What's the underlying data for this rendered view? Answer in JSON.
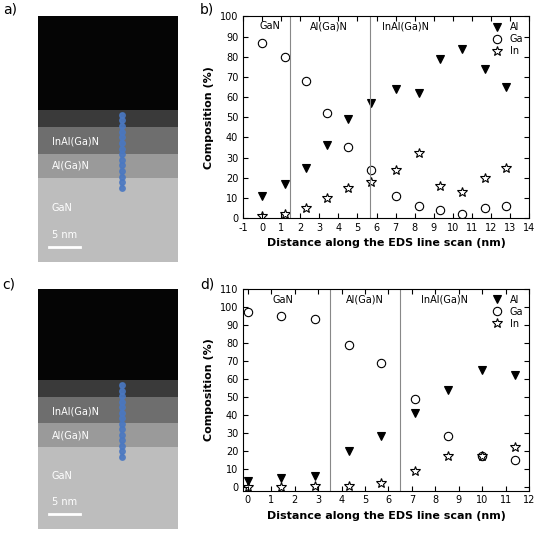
{
  "images": [
    {
      "panel": "a)",
      "layers": [
        "InAl(Ga)N",
        "Al(Ga)N",
        "GaN"
      ],
      "scale_bar": "5 nm"
    },
    {
      "panel": "c)",
      "layers": [
        "InAl(Ga)N",
        "Al(Ga)N",
        "GaN"
      ],
      "scale_bar": "5 nm"
    }
  ],
  "chart_data": [
    {
      "type": "scatter",
      "panel": "b)",
      "xlabel": "Distance along the EDS line scan (nm)",
      "ylabel": "Composition (%)",
      "xlim": [
        -1,
        14
      ],
      "xticks": [
        -1,
        0,
        1,
        2,
        3,
        4,
        5,
        6,
        7,
        8,
        9,
        10,
        11,
        12,
        13,
        14
      ],
      "ylim": [
        0,
        100
      ],
      "yticks": [
        0,
        10,
        20,
        30,
        40,
        50,
        60,
        70,
        80,
        90,
        100
      ],
      "legend": "upper right",
      "dividers": [
        1.45,
        5.65
      ],
      "annotations": [
        {
          "text": "GaN",
          "x": 0.4,
          "y": 95
        },
        {
          "text": "Al(Ga)N",
          "x": 3.5,
          "y": 95
        },
        {
          "text": "InAl(Ga)N",
          "x": 7.5,
          "y": 95
        }
      ],
      "x": [
        0,
        1.2,
        2.3,
        3.4,
        4.5,
        5.7,
        7.0,
        8.2,
        9.3,
        10.5,
        11.7,
        12.8
      ],
      "series": [
        {
          "name": "Al",
          "color": "#000000",
          "marker": "filled_triangle_down",
          "values": [
            11,
            17,
            25,
            36,
            49,
            57,
            64,
            62,
            79,
            84,
            74,
            65
          ]
        },
        {
          "name": "Ga",
          "color": "#000000",
          "marker": "open_circle",
          "values": [
            87,
            80,
            68,
            52,
            35,
            24,
            11,
            6,
            4,
            2,
            5,
            6
          ]
        },
        {
          "name": "In",
          "color": "#000000",
          "marker": "open_star",
          "values": [
            1,
            2,
            5,
            10,
            15,
            18,
            24,
            32,
            16,
            13,
            20,
            25
          ]
        }
      ]
    },
    {
      "type": "scatter",
      "panel": "d)",
      "xlabel": "Distance along the EDS line scan (nm)",
      "ylabel": "Composition (%)",
      "xlim": [
        -0.2,
        12
      ],
      "xticks": [
        0,
        1,
        2,
        3,
        4,
        5,
        6,
        7,
        8,
        9,
        10,
        11,
        12
      ],
      "ylim": [
        -2,
        110
      ],
      "yticks": [
        0,
        10,
        20,
        30,
        40,
        50,
        60,
        70,
        80,
        90,
        100,
        110
      ],
      "legend": "upper right",
      "dividers": [
        3.5,
        6.5
      ],
      "annotations": [
        {
          "text": "GaN",
          "x": 1.5,
          "y": 104
        },
        {
          "text": "Al(Ga)N",
          "x": 5.0,
          "y": 104
        },
        {
          "text": "InAl(Ga)N",
          "x": 8.4,
          "y": 104
        }
      ],
      "x": [
        0,
        1.4,
        2.85,
        4.3,
        5.7,
        7.15,
        8.55,
        10.0,
        11.4
      ],
      "series": [
        {
          "name": "Al",
          "color": "#000000",
          "marker": "filled_triangle_down",
          "values": [
            3,
            5,
            6,
            20,
            28,
            41,
            54,
            65,
            62
          ]
        },
        {
          "name": "Ga",
          "color": "#000000",
          "marker": "open_circle",
          "values": [
            97,
            95,
            93,
            79,
            69,
            49,
            28,
            17,
            15
          ]
        },
        {
          "name": "In",
          "color": "#000000",
          "marker": "open_star",
          "values": [
            0,
            0,
            0.5,
            0.5,
            2,
            9,
            17,
            17,
            22
          ]
        }
      ]
    }
  ]
}
